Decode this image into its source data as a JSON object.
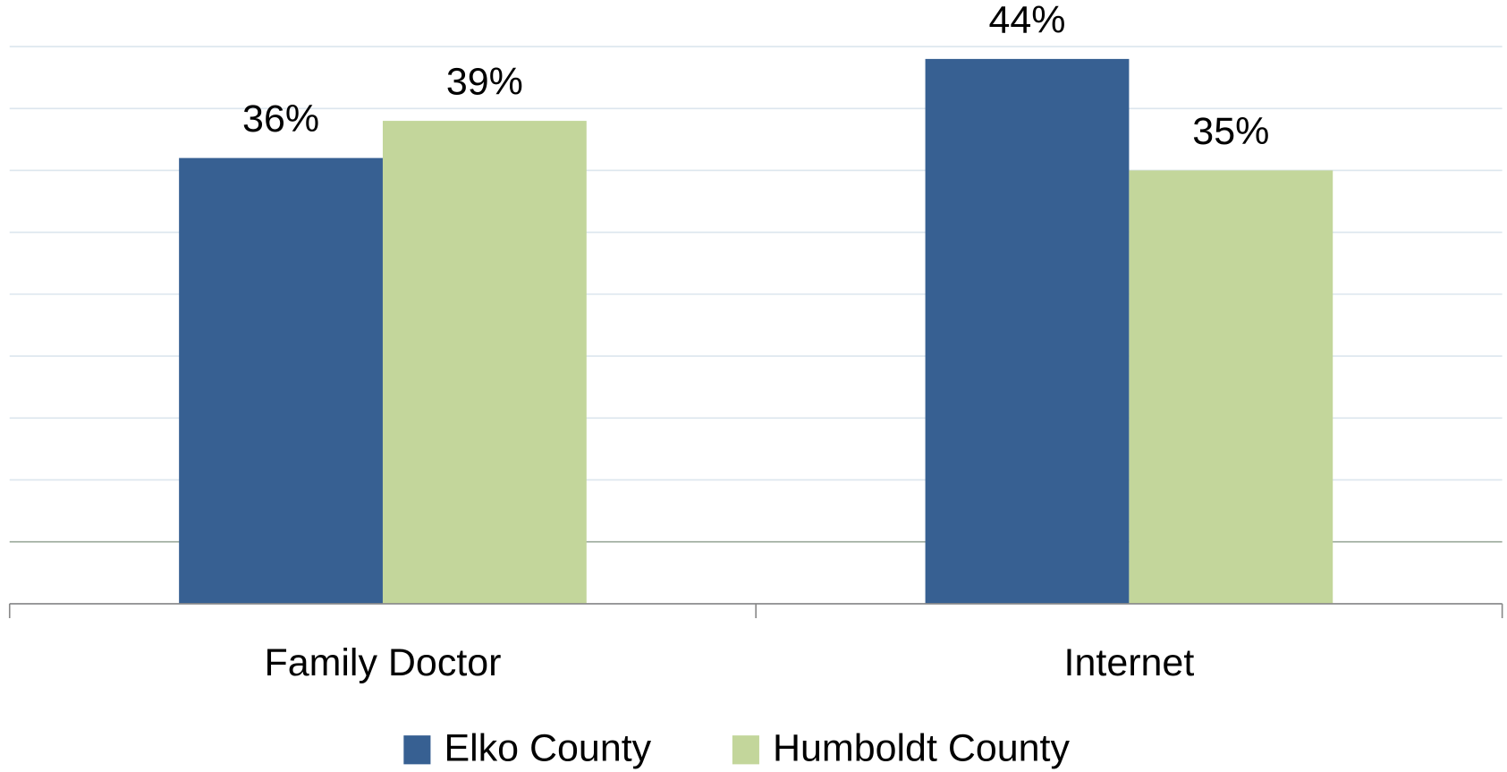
{
  "chart_data": {
    "type": "bar",
    "categories": [
      "Family Doctor",
      "Internet"
    ],
    "series": [
      {
        "name": "Elko County",
        "color": "#376092",
        "values": [
          36,
          44
        ],
        "value_labels": [
          "36%",
          "44%"
        ]
      },
      {
        "name": "Humboldt County",
        "color": "#c3d69b",
        "values": [
          39,
          35
        ],
        "value_labels": [
          "39%",
          "35%"
        ]
      }
    ],
    "ylim": [
      0,
      45
    ],
    "yticks": [
      0,
      5,
      10,
      15,
      20,
      25,
      30,
      35,
      40,
      45
    ],
    "grid": true,
    "legend": "bottom"
  }
}
